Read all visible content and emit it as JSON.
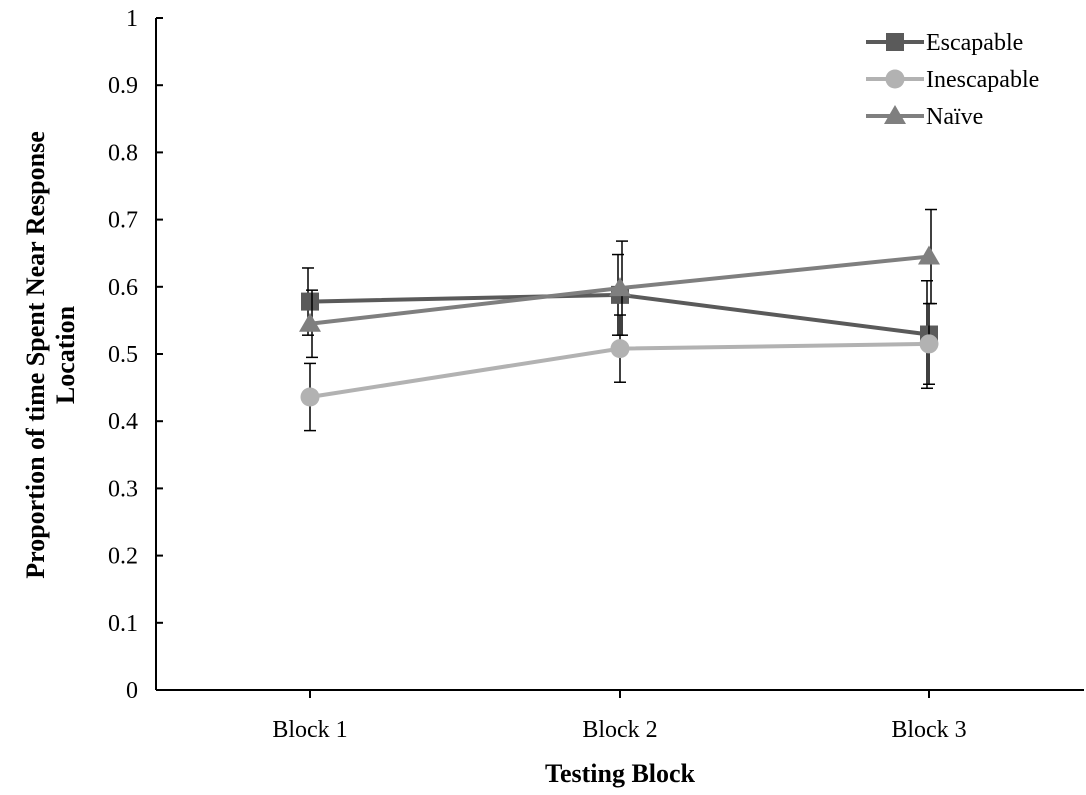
{
  "chart_data": {
    "type": "line",
    "categories": [
      "Block 1",
      "Block 2",
      "Block 3"
    ],
    "xlabel": "Testing Block",
    "ylabel_lines": [
      "Proportion of time Spent Near Response",
      "Location"
    ],
    "ylim": [
      0,
      1
    ],
    "yticks": [
      "0",
      "0.1",
      "0.2",
      "0.3",
      "0.4",
      "0.5",
      "0.6",
      "0.7",
      "0.8",
      "0.9",
      "1"
    ],
    "grid": false,
    "legend_position": "top-right",
    "series": [
      {
        "name": "Escapable",
        "values": [
          0.578,
          0.588,
          0.529
        ],
        "errors": [
          0.05,
          0.06,
          0.08
        ],
        "marker": "square",
        "color": "#5a5a5a"
      },
      {
        "name": "Inescapable",
        "values": [
          0.436,
          0.508,
          0.515
        ],
        "errors": [
          0.05,
          0.05,
          0.06
        ],
        "marker": "circle",
        "color": "#b2b2b2"
      },
      {
        "name": "Naïve",
        "values": [
          0.545,
          0.598,
          0.645
        ],
        "errors": [
          0.05,
          0.07,
          0.07
        ],
        "marker": "triangle",
        "color": "#7f7f7f"
      }
    ]
  }
}
